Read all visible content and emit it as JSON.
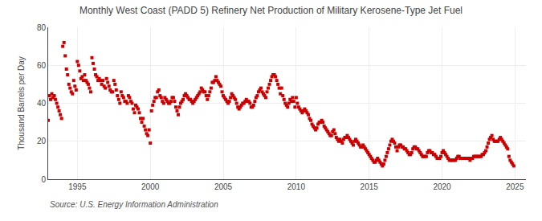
{
  "chart_data": {
    "type": "scatter",
    "title": "Monthly West Coast (PADD 5) Refinery Net Production of Military Kerosene-Type Jet Fuel",
    "ylabel": "Thousand Barrels per Day",
    "annotations": [
      "Source: U.S. Energy Information Administration"
    ],
    "color": "#cc0000",
    "marker": "square",
    "grid": true,
    "xlim": [
      1993.0,
      2025.75
    ],
    "xticks": [
      1995,
      2000,
      2005,
      2010,
      2015,
      2020,
      2025
    ],
    "ylim": [
      0,
      80
    ],
    "yticks": [
      0,
      20,
      40,
      60,
      80
    ],
    "x": [
      1993.0,
      1993.083,
      1993.167,
      1993.25,
      1993.333,
      1993.417,
      1993.5,
      1993.583,
      1993.667,
      1993.75,
      1993.833,
      1993.917,
      1994.0,
      1994.083,
      1994.167,
      1994.25,
      1994.333,
      1994.417,
      1994.5,
      1994.583,
      1994.667,
      1994.75,
      1994.833,
      1994.917,
      1995.0,
      1995.083,
      1995.167,
      1995.25,
      1995.333,
      1995.417,
      1995.5,
      1995.583,
      1995.667,
      1995.75,
      1995.833,
      1995.917,
      1996.0,
      1996.083,
      1996.167,
      1996.25,
      1996.333,
      1996.417,
      1996.5,
      1996.583,
      1996.667,
      1996.75,
      1996.833,
      1996.917,
      1997.0,
      1997.083,
      1997.167,
      1997.25,
      1997.333,
      1997.417,
      1997.5,
      1997.583,
      1997.667,
      1997.75,
      1997.833,
      1997.917,
      1998.0,
      1998.083,
      1998.167,
      1998.25,
      1998.333,
      1998.417,
      1998.5,
      1998.583,
      1998.667,
      1998.75,
      1998.833,
      1998.917,
      1999.0,
      1999.083,
      1999.167,
      1999.25,
      1999.333,
      1999.417,
      1999.5,
      1999.583,
      1999.667,
      1999.75,
      1999.833,
      1999.917,
      2000.0,
      2000.083,
      2000.167,
      2000.25,
      2000.333,
      2000.417,
      2000.5,
      2000.583,
      2000.667,
      2000.75,
      2000.833,
      2000.917,
      2001.0,
      2001.083,
      2001.167,
      2001.25,
      2001.333,
      2001.417,
      2001.5,
      2001.583,
      2001.667,
      2001.75,
      2001.833,
      2001.917,
      2002.0,
      2002.083,
      2002.167,
      2002.25,
      2002.333,
      2002.417,
      2002.5,
      2002.583,
      2002.667,
      2002.75,
      2002.833,
      2002.917,
      2003.0,
      2003.083,
      2003.167,
      2003.25,
      2003.333,
      2003.417,
      2003.5,
      2003.583,
      2003.667,
      2003.75,
      2003.833,
      2003.917,
      2004.0,
      2004.083,
      2004.167,
      2004.25,
      2004.333,
      2004.417,
      2004.5,
      2004.583,
      2004.667,
      2004.75,
      2004.833,
      2004.917,
      2005.0,
      2005.083,
      2005.167,
      2005.25,
      2005.333,
      2005.417,
      2005.5,
      2005.583,
      2005.667,
      2005.75,
      2005.833,
      2005.917,
      2006.0,
      2006.083,
      2006.167,
      2006.25,
      2006.333,
      2006.417,
      2006.5,
      2006.583,
      2006.667,
      2006.75,
      2006.833,
      2006.917,
      2007.0,
      2007.083,
      2007.167,
      2007.25,
      2007.333,
      2007.417,
      2007.5,
      2007.583,
      2007.667,
      2007.75,
      2007.833,
      2007.917,
      2008.0,
      2008.083,
      2008.167,
      2008.25,
      2008.333,
      2008.417,
      2008.5,
      2008.583,
      2008.667,
      2008.75,
      2008.833,
      2008.917,
      2009.0,
      2009.083,
      2009.167,
      2009.25,
      2009.333,
      2009.417,
      2009.5,
      2009.583,
      2009.667,
      2009.75,
      2009.833,
      2009.917,
      2010.0,
      2010.083,
      2010.167,
      2010.25,
      2010.333,
      2010.417,
      2010.5,
      2010.583,
      2010.667,
      2010.75,
      2010.833,
      2010.917,
      2011.0,
      2011.083,
      2011.167,
      2011.25,
      2011.333,
      2011.417,
      2011.5,
      2011.583,
      2011.667,
      2011.75,
      2011.833,
      2011.917,
      2012.0,
      2012.083,
      2012.167,
      2012.25,
      2012.333,
      2012.417,
      2012.5,
      2012.583,
      2012.667,
      2012.75,
      2012.833,
      2012.917,
      2013.0,
      2013.083,
      2013.167,
      2013.25,
      2013.333,
      2013.417,
      2013.5,
      2013.583,
      2013.667,
      2013.75,
      2013.833,
      2013.917,
      2014.0,
      2014.083,
      2014.167,
      2014.25,
      2014.333,
      2014.417,
      2014.5,
      2014.583,
      2014.667,
      2014.75,
      2014.833,
      2014.917,
      2015.0,
      2015.083,
      2015.167,
      2015.25,
      2015.333,
      2015.417,
      2015.5,
      2015.583,
      2015.667,
      2015.75,
      2015.833,
      2015.917,
      2016.0,
      2016.083,
      2016.167,
      2016.25,
      2016.333,
      2016.417,
      2016.5,
      2016.583,
      2016.667,
      2016.75,
      2016.833,
      2016.917,
      2017.0,
      2017.083,
      2017.167,
      2017.25,
      2017.333,
      2017.417,
      2017.5,
      2017.583,
      2017.667,
      2017.75,
      2017.833,
      2017.917,
      2018.0,
      2018.083,
      2018.167,
      2018.25,
      2018.333,
      2018.417,
      2018.5,
      2018.583,
      2018.667,
      2018.75,
      2018.833,
      2018.917,
      2019.0,
      2019.083,
      2019.167,
      2019.25,
      2019.333,
      2019.417,
      2019.5,
      2019.583,
      2019.667,
      2019.75,
      2019.833,
      2019.917,
      2020.0,
      2020.083,
      2020.167,
      2020.25,
      2020.333,
      2020.417,
      2020.5,
      2020.583,
      2020.667,
      2020.75,
      2020.833,
      2020.917,
      2021.0,
      2021.083,
      2021.167,
      2021.25,
      2021.333,
      2021.417,
      2021.5,
      2021.583,
      2021.667,
      2021.75,
      2021.833,
      2021.917,
      2022.0,
      2022.083,
      2022.167,
      2022.25,
      2022.333,
      2022.417,
      2022.5,
      2022.583,
      2022.667,
      2022.75,
      2022.833,
      2022.917,
      2023.0,
      2023.083,
      2023.167,
      2023.25,
      2023.333,
      2023.417,
      2023.5,
      2023.583,
      2023.667,
      2023.75,
      2023.833,
      2023.917,
      2024.0,
      2024.083,
      2024.167,
      2024.25,
      2024.333,
      2024.417,
      2024.5,
      2024.583,
      2024.667,
      2024.75,
      2024.833,
      2024.917
    ],
    "values": [
      31,
      44,
      42,
      45,
      43,
      44,
      42,
      40,
      38,
      36,
      34,
      32,
      70,
      72,
      65,
      58,
      55,
      50,
      48,
      46,
      45,
      52,
      49,
      47,
      62,
      60,
      57,
      53,
      54,
      52,
      55,
      52,
      51,
      50,
      48,
      46,
      64,
      61,
      58,
      55,
      54,
      52,
      53,
      52,
      50,
      52,
      49,
      48,
      53,
      51,
      49,
      47,
      46,
      46,
      52,
      50,
      47,
      44,
      42,
      40,
      46,
      44,
      43,
      41,
      41,
      40,
      44,
      43,
      41,
      40,
      37,
      35,
      39,
      38,
      37,
      35,
      32,
      30,
      32,
      28,
      26,
      24,
      23,
      26,
      19,
      36,
      39,
      41,
      43,
      43,
      46,
      47,
      44,
      43,
      41,
      40,
      43,
      42,
      41,
      40,
      40,
      41,
      43,
      43,
      41,
      38,
      36,
      34,
      38,
      40,
      41,
      42,
      44,
      45,
      44,
      43,
      42,
      42,
      41,
      40,
      41,
      42,
      43,
      44,
      45,
      46,
      48,
      47,
      46,
      46,
      44,
      42,
      44,
      46,
      48,
      51,
      51,
      52,
      54,
      52,
      51,
      50,
      49,
      46,
      44,
      43,
      42,
      41,
      40,
      41,
      43,
      45,
      44,
      43,
      42,
      40,
      38,
      37,
      38,
      39,
      40,
      40,
      41,
      42,
      41,
      41,
      40,
      38,
      38,
      39,
      41,
      43,
      44,
      46,
      47,
      48,
      46,
      45,
      44,
      43,
      46,
      48,
      50,
      52,
      54,
      55,
      55,
      54,
      52,
      50,
      48,
      45,
      48,
      44,
      42,
      40,
      39,
      38,
      40,
      42,
      41,
      43,
      41,
      38,
      43,
      40,
      38,
      37,
      36,
      35,
      36,
      37,
      36,
      35,
      34,
      32,
      31,
      29,
      28,
      27,
      26,
      27,
      29,
      30,
      30,
      31,
      30,
      28,
      27,
      26,
      25,
      24,
      23,
      23,
      25,
      26,
      24,
      22,
      21,
      20,
      21,
      20,
      19,
      21,
      22,
      22,
      23,
      22,
      21,
      20,
      19,
      18,
      20,
      21,
      20,
      19,
      18,
      17,
      17,
      18,
      17,
      16,
      15,
      14,
      13,
      12,
      11,
      10,
      9,
      9,
      10,
      11,
      10,
      9,
      8,
      7,
      8,
      10,
      12,
      14,
      16,
      18,
      20,
      21,
      20,
      19,
      17,
      15,
      17,
      18,
      18,
      17,
      17,
      16,
      16,
      15,
      14,
      13,
      13,
      14,
      16,
      17,
      17,
      16,
      16,
      15,
      14,
      13,
      12,
      12,
      12,
      12,
      14,
      15,
      15,
      14,
      14,
      13,
      13,
      12,
      11,
      11,
      11,
      12,
      14,
      15,
      14,
      13,
      12,
      11,
      10,
      10,
      10,
      10,
      10,
      10,
      11,
      12,
      12,
      11,
      11,
      11,
      11,
      11,
      11,
      11,
      11,
      10,
      11,
      11,
      12,
      12,
      12,
      12,
      12,
      12,
      12,
      13,
      13,
      14,
      15,
      17,
      19,
      21,
      22,
      23,
      21,
      20,
      20,
      20,
      20,
      21,
      22,
      21,
      20,
      19,
      18,
      17,
      16,
      12,
      10,
      9,
      8,
      7
    ]
  }
}
